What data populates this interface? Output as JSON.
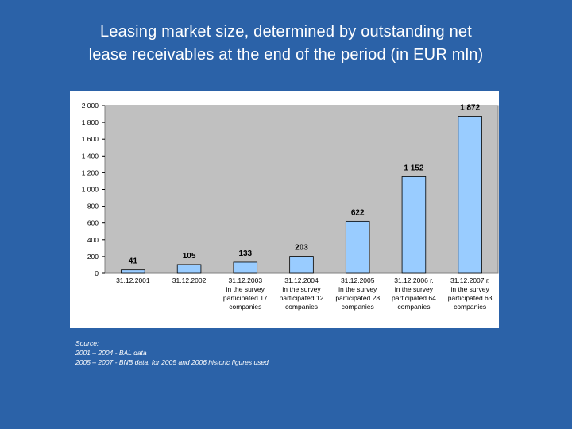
{
  "slide": {
    "title_line1": "Leasing market size, determined by outstanding net",
    "title_line2": "lease receivables at the end of the period (in EUR mln)",
    "source_lines": [
      "Source:",
      "2001 – 2004 - BAL data",
      "2005 – 2007 - BNB data, for 2005 and 2006 historic figures used"
    ]
  },
  "colors": {
    "background": "#2b62a8",
    "plot_area": "#c0c0c0",
    "bar_fill": "#99ccff"
  },
  "chart_data": {
    "type": "bar",
    "title": "",
    "xlabel": "",
    "ylabel": "",
    "categories": [
      [
        "31.12.2001"
      ],
      [
        "31.12.2002"
      ],
      [
        "31.12.2003",
        "in the survey",
        "participated 17",
        "companies"
      ],
      [
        "31.12.2004",
        "in the survey",
        "participated 12",
        "companies"
      ],
      [
        "31.12.2005",
        "in the survey",
        "participated 28",
        "companies"
      ],
      [
        "31.12.2006 г.",
        "in the survey",
        "participated 64",
        "companies"
      ],
      [
        "31.12.2007 г.",
        "in the survey",
        "participated 63",
        "companies"
      ]
    ],
    "values": [
      41,
      105,
      133,
      203,
      622,
      1152,
      1872
    ],
    "value_labels": [
      "41",
      "105",
      "133",
      "203",
      "622",
      "1 152",
      "1 872"
    ],
    "ylim": [
      0,
      2000
    ],
    "yticks": [
      0,
      200,
      400,
      600,
      800,
      1000,
      1200,
      1400,
      1600,
      1800,
      2000
    ],
    "ytick_labels": [
      "0",
      "200",
      "400",
      "600",
      "800",
      "1 000",
      "1 200",
      "1 400",
      "1 600",
      "1 800",
      "2 000"
    ],
    "grid": false,
    "legend": "none"
  }
}
